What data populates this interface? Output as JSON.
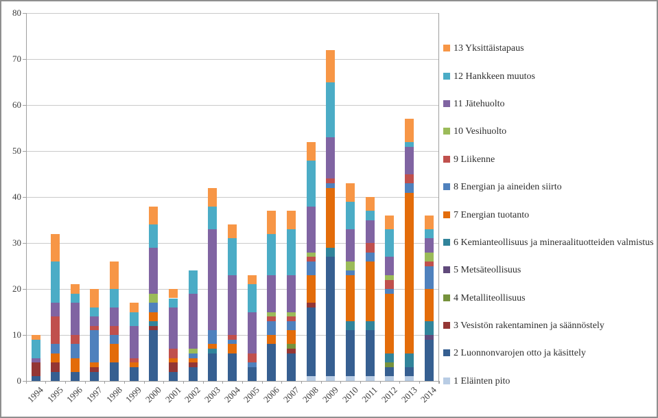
{
  "figure": {
    "background": "#ffffff",
    "frame_border_color": "#8f8f8f",
    "gridline_color": "#c9c9c9",
    "axis_color": "#9e9e9e",
    "text_color": "#3c3c3c"
  },
  "chart_data": {
    "type": "bar",
    "stacked": true,
    "title": "",
    "xlabel": "",
    "ylabel": "",
    "ylim": [
      0,
      80
    ],
    "y_ticks": [
      0,
      10,
      20,
      30,
      40,
      50,
      60,
      70,
      80
    ],
    "grid": "horizontal",
    "legend_position": "right",
    "categories": [
      "1994",
      "1995",
      "1996",
      "1997",
      "1998",
      "1999",
      "2000",
      "2001",
      "2002",
      "2003",
      "2004",
      "2005",
      "2006",
      "2007",
      "2008",
      "2009",
      "2010",
      "2011",
      "2012",
      "2013",
      "2014"
    ],
    "series": [
      {
        "name": "1 Eläinten pito",
        "color": "#B8CCE4",
        "values": [
          0,
          0,
          0,
          0,
          0,
          0,
          0,
          0,
          0,
          0,
          0,
          0,
          0,
          0,
          1,
          1,
          1,
          1,
          1,
          1,
          0
        ]
      },
      {
        "name": "2 Luonnonvarojen otto ja käsittely",
        "color": "#365F91",
        "values": [
          1,
          2,
          2,
          2,
          4,
          3,
          11,
          2,
          3,
          6,
          6,
          3,
          8,
          6,
          15,
          26,
          10,
          10,
          2,
          2,
          9
        ]
      },
      {
        "name": "3 Vesistön rakentaminen ja säännöstely",
        "color": "#943634",
        "values": [
          3,
          2,
          0,
          1,
          0,
          0,
          1,
          2,
          1,
          0,
          0,
          0,
          0,
          1,
          1,
          0,
          0,
          0,
          0,
          0,
          0
        ]
      },
      {
        "name": "4 Metalliteollisuus",
        "color": "#76923C",
        "values": [
          0,
          0,
          0,
          0,
          0,
          0,
          0,
          0,
          0,
          0,
          0,
          0,
          0,
          1,
          0,
          0,
          0,
          0,
          1,
          0,
          0
        ]
      },
      {
        "name": "5 Metsäteollisuus",
        "color": "#604A7B",
        "values": [
          0,
          0,
          0,
          0,
          0,
          0,
          0,
          0,
          0,
          0,
          0,
          0,
          0,
          0,
          0,
          0,
          0,
          0,
          0,
          0,
          1
        ]
      },
      {
        "name": "6 Kemianteollisuus ja mineraalituotteiden valmistus",
        "color": "#31849B",
        "values": [
          0,
          0,
          0,
          0,
          0,
          0,
          1,
          0,
          0,
          1,
          0,
          0,
          0,
          0,
          0,
          2,
          2,
          2,
          2,
          3,
          3
        ]
      },
      {
        "name": "7 Energian tuotanto",
        "color": "#E36C0A",
        "values": [
          0,
          2,
          3,
          1,
          4,
          1,
          2,
          1,
          1,
          1,
          2,
          0,
          2,
          3,
          6,
          13,
          10,
          13,
          13,
          35,
          7
        ]
      },
      {
        "name": "8 Energian ja aineiden siirto",
        "color": "#4F81BD",
        "values": [
          0,
          2,
          3,
          7,
          2,
          0,
          2,
          0,
          1,
          3,
          1,
          1,
          3,
          2,
          3,
          1,
          1,
          2,
          1,
          2,
          5
        ]
      },
      {
        "name": "9 Liikenne",
        "color": "#C0504D",
        "values": [
          0,
          6,
          2,
          1,
          2,
          1,
          0,
          2,
          0,
          0,
          1,
          2,
          1,
          1,
          1,
          1,
          0,
          2,
          2,
          2,
          1
        ]
      },
      {
        "name": "10 Vesihuolto",
        "color": "#9BBB59",
        "values": [
          0,
          0,
          0,
          0,
          0,
          0,
          2,
          0,
          1,
          0,
          0,
          0,
          1,
          1,
          1,
          0,
          2,
          0,
          1,
          0,
          2
        ]
      },
      {
        "name": "11 Jätehuolto",
        "color": "#8064A2",
        "values": [
          1,
          3,
          7,
          2,
          4,
          7,
          10,
          9,
          12,
          22,
          13,
          9,
          8,
          8,
          10,
          9,
          7,
          5,
          4,
          6,
          3
        ]
      },
      {
        "name": "12 Hankkeen muutos",
        "color": "#4BACC6",
        "values": [
          4,
          9,
          2,
          2,
          4,
          3,
          5,
          2,
          5,
          5,
          8,
          6,
          9,
          10,
          10,
          12,
          6,
          2,
          6,
          1,
          2
        ]
      },
      {
        "name": "13 Yksittäistapaus",
        "color": "#F79646",
        "values": [
          1,
          6,
          2,
          4,
          6,
          2,
          4,
          2,
          0,
          4,
          3,
          2,
          5,
          4,
          4,
          7,
          4,
          3,
          3,
          5,
          3
        ]
      }
    ]
  }
}
